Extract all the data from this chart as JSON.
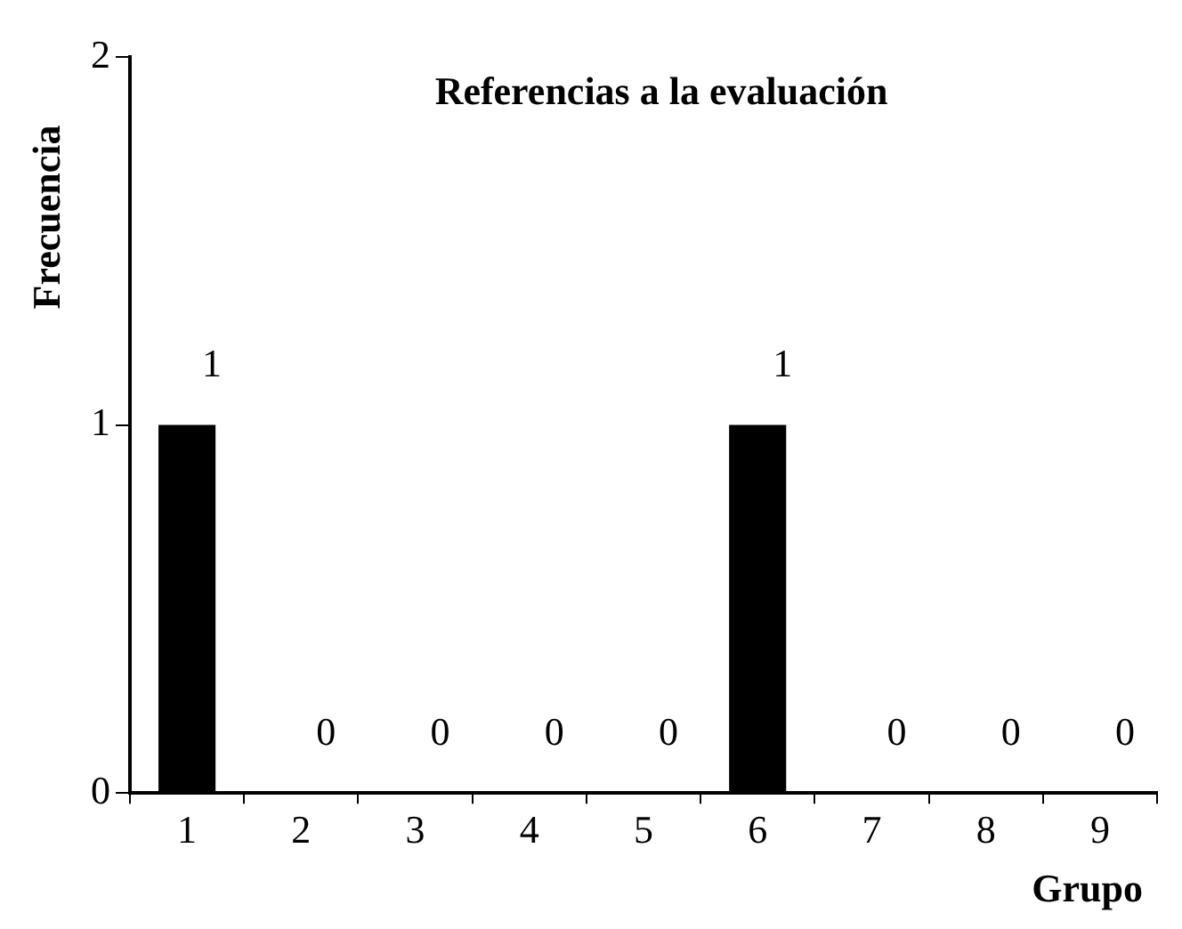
{
  "chart_data": {
    "type": "bar",
    "title": "Referencias a la evaluación",
    "xlabel": "Grupo",
    "ylabel": "Frecuencia",
    "categories": [
      "1",
      "2",
      "3",
      "4",
      "5",
      "6",
      "7",
      "8",
      "9"
    ],
    "values": [
      1,
      0,
      0,
      0,
      0,
      1,
      0,
      0,
      0
    ],
    "color": "#000000",
    "ylim": [
      0,
      2
    ],
    "yticks": [
      0,
      1,
      2
    ],
    "grid": false,
    "data_labels": true
  }
}
